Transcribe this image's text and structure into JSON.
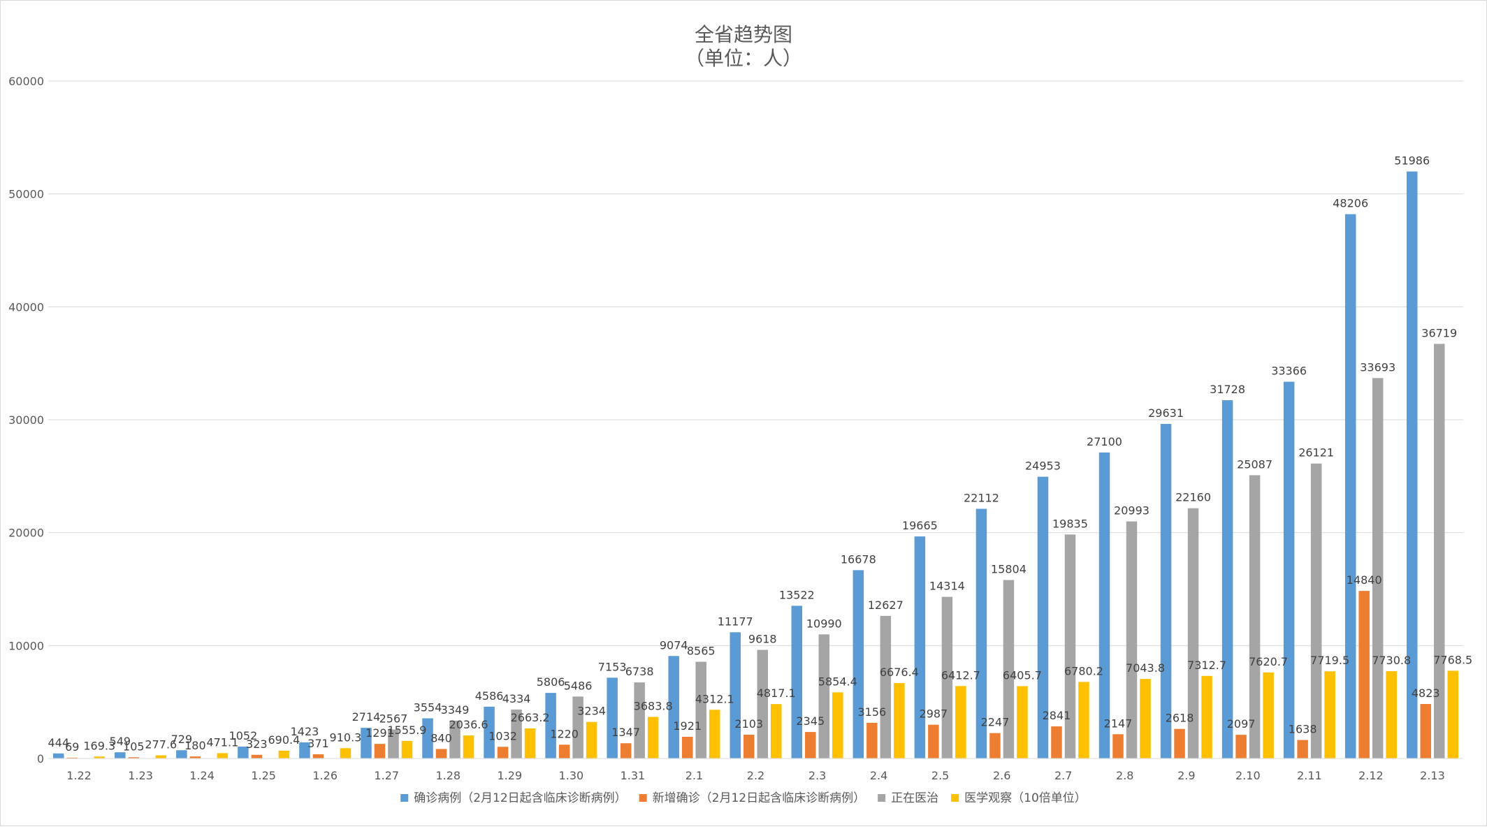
{
  "chart_data": {
    "type": "bar",
    "title": "全省趋势图",
    "subtitle": "（单位：人）",
    "xlabel": "",
    "ylabel": "",
    "ylim": [
      0,
      60000
    ],
    "yticks": [
      0,
      10000,
      20000,
      30000,
      40000,
      50000,
      60000
    ],
    "grid": true,
    "legend_position": "bottom",
    "categories": [
      "1.22",
      "1.23",
      "1.24",
      "1.25",
      "1.26",
      "1.27",
      "1.28",
      "1.29",
      "1.30",
      "1.31",
      "2.1",
      "2.2",
      "2.3",
      "2.4",
      "2.5",
      "2.6",
      "2.7",
      "2.8",
      "2.9",
      "2.10",
      "2.11",
      "2.12",
      "2.13"
    ],
    "series": [
      {
        "name": "确诊病例（2月12日起含临床诊断病例）",
        "color": "#5b9bd5",
        "values": [
          444,
          549,
          729,
          1052,
          1423,
          2714,
          3554,
          4586,
          5806,
          7153,
          9074,
          11177,
          13522,
          16678,
          19665,
          22112,
          24953,
          27100,
          29631,
          31728,
          33366,
          48206,
          51986
        ],
        "labels": [
          "444",
          "549",
          "729",
          "1052",
          "1423",
          "2714",
          "3554",
          "4586",
          "5806",
          "7153",
          "9074",
          "11177",
          "13522",
          "16678",
          "19665",
          "22112",
          "24953",
          "27100",
          "29631",
          "31728",
          "33366",
          "48206",
          "51986"
        ]
      },
      {
        "name": "新增确诊（2月12日起含临床诊断病例）",
        "color": "#ed7d31",
        "values": [
          69,
          105,
          180,
          323,
          371,
          1291,
          840,
          1032,
          1220,
          1347,
          1921,
          2103,
          2345,
          3156,
          2987,
          2247,
          2841,
          2147,
          2618,
          2097,
          1638,
          14840,
          4823
        ],
        "labels": [
          "69",
          "105",
          "180",
          "323",
          "371",
          "1291",
          "840",
          "1032",
          "1220",
          "1347",
          "1921",
          "2103",
          "2345",
          "3156",
          "2987",
          "2247",
          "2841",
          "2147",
          "2618",
          "2097",
          "1638",
          "14840",
          "4823"
        ]
      },
      {
        "name": "正在医治",
        "color": "#a5a5a5",
        "values": [
          null,
          null,
          null,
          null,
          null,
          2567,
          3349,
          4334,
          5486,
          6738,
          8565,
          9618,
          10990,
          12627,
          14314,
          15804,
          19835,
          20993,
          22160,
          25087,
          26121,
          33693,
          36719
        ],
        "labels": [
          "",
          "",
          "",
          "",
          "",
          "2567",
          "3349",
          "4334",
          "5486",
          "6738",
          "8565",
          "9618",
          "10990",
          "12627",
          "14314",
          "15804",
          "19835",
          "20993",
          "22160",
          "25087",
          "26121",
          "33693",
          "36719"
        ]
      },
      {
        "name": "医学观察（10倍单位）",
        "color": "#ffc000",
        "values": [
          169.3,
          277.6,
          471.1,
          690.4,
          910.3,
          1555.9,
          2036.6,
          2663.2,
          3234,
          3683.8,
          4312.1,
          4817.1,
          5854.4,
          6676.4,
          6412.7,
          6405.7,
          6780.2,
          7043.8,
          7312.7,
          7620.7,
          7719.5,
          7730.8,
          7768.5
        ],
        "labels": [
          "169.3",
          "277.6",
          "471.1",
          "690.4",
          "910.3",
          "1555.9",
          "2036.6",
          "2663.2",
          "3234",
          "3683.8",
          "4312.1",
          "4817.1",
          "5854.4",
          "6676.4",
          "6412.7",
          "6405.7",
          "6780.2",
          "7043.8",
          "7312.7",
          "7620.7",
          "7719.5",
          "7730.8",
          "7768.5"
        ]
      }
    ]
  }
}
